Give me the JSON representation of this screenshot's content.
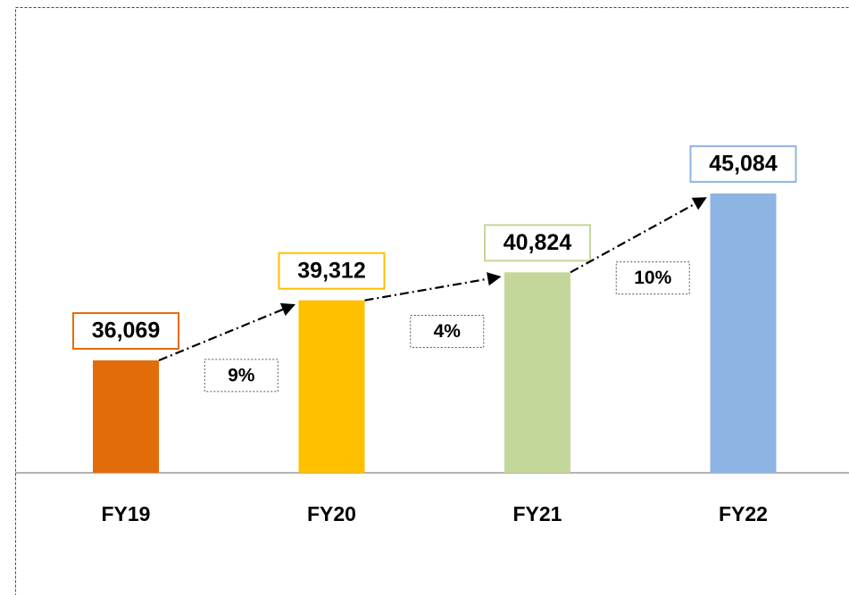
{
  "chart_data": {
    "type": "bar",
    "categories": [
      "FY19",
      "FY20",
      "FY21",
      "FY22"
    ],
    "values": [
      36069,
      39312,
      40824,
      45084
    ],
    "value_labels": [
      "36,069",
      "39,312",
      "40,824",
      "45,084"
    ],
    "colors": [
      "#e36c0a",
      "#ffc000",
      "#c4d79b",
      "#8db4e2"
    ],
    "annotations": [
      "9%",
      "4%",
      "10%"
    ],
    "ylim": [
      30000,
      55000
    ],
    "grid": false
  }
}
